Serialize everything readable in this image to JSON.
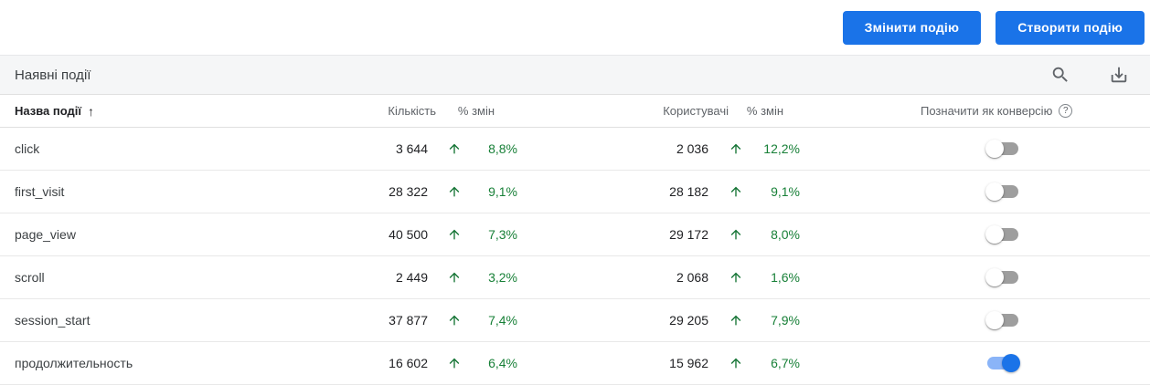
{
  "toolbar": {
    "modify_event_label": "Змінити подію",
    "create_event_label": "Створити подію"
  },
  "card": {
    "title": "Наявні події",
    "header_icons": [
      {
        "name": "search-icon"
      },
      {
        "name": "download-icon"
      }
    ],
    "table": {
      "columns": {
        "name": "Назва події",
        "sort_arrow": "↑",
        "count": "Кількість",
        "count_change": "% змін",
        "users": "Користувачі",
        "users_change": "% змін",
        "mark_as_conversion": "Позначити як конверсію",
        "help_glyph": "?"
      },
      "rows": [
        {
          "name": "click",
          "count": "3 644",
          "count_change": "8,8%",
          "users": "2 036",
          "users_change": "12,2%",
          "conversion_on": false
        },
        {
          "name": "first_visit",
          "count": "28 322",
          "count_change": "9,1%",
          "users": "28 182",
          "users_change": "9,1%",
          "conversion_on": false
        },
        {
          "name": "page_view",
          "count": "40 500",
          "count_change": "7,3%",
          "users": "29 172",
          "users_change": "8,0%",
          "conversion_on": false
        },
        {
          "name": "scroll",
          "count": "2 449",
          "count_change": "3,2%",
          "users": "2 068",
          "users_change": "1,6%",
          "conversion_on": false
        },
        {
          "name": "session_start",
          "count": "37 877",
          "count_change": "7,4%",
          "users": "29 205",
          "users_change": "7,9%",
          "conversion_on": false
        },
        {
          "name": "продолжительность",
          "count": "16 602",
          "count_change": "6,4%",
          "users": "15 962",
          "users_change": "6,7%",
          "conversion_on": true
        }
      ]
    }
  },
  "colors": {
    "accent": "#1a73e8",
    "positive_green": "#188038",
    "toggle_on_knob": "#1a73e8",
    "toggle_on_track": "#8ab4f8",
    "toggle_off_track": "#9e9e9e",
    "header_band_bg": "#f5f6f7"
  }
}
